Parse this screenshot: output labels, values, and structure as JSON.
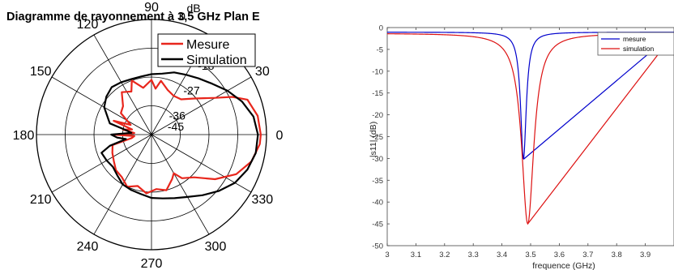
{
  "chart_data": [
    {
      "type": "polar",
      "title": "Diagramme de rayonnement à 3,5 GHz Plan E",
      "radial_unit": "dB",
      "radial_ticks": [
        {
          "label": "0",
          "level": 4
        },
        {
          "label": "-18",
          "level": 3
        },
        {
          "label": "-27",
          "level": 2
        },
        {
          "label": "-36",
          "level": 1
        },
        {
          "label": "-45",
          "level": 0
        }
      ],
      "angle_ticks": [
        {
          "angle": 0,
          "label": "0"
        },
        {
          "angle": 30,
          "label": "30"
        },
        {
          "angle": 60,
          "label": ""
        },
        {
          "angle": 90,
          "label": "90"
        },
        {
          "angle": 120,
          "label": "120"
        },
        {
          "angle": 150,
          "label": "150"
        },
        {
          "angle": 180,
          "label": "180"
        },
        {
          "angle": 210,
          "label": "210"
        },
        {
          "angle": 240,
          "label": "240"
        },
        {
          "angle": 270,
          "label": "270"
        },
        {
          "angle": 300,
          "label": "300"
        },
        {
          "angle": 330,
          "label": "330"
        }
      ],
      "legend_position": "top-right",
      "series": [
        {
          "name": "Mesure",
          "color": "#e8261c",
          "points": [
            [
              0,
              3.8
            ],
            [
              10,
              3.75
            ],
            [
              20,
              3.55
            ],
            [
              25,
              3.1
            ],
            [
              30,
              2.55
            ],
            [
              40,
              1.95
            ],
            [
              50,
              1.6
            ],
            [
              60,
              1.55
            ],
            [
              70,
              1.65
            ],
            [
              80,
              1.9
            ],
            [
              85,
              1.6
            ],
            [
              90,
              1.9
            ],
            [
              100,
              1.65
            ],
            [
              110,
              2.0
            ],
            [
              115,
              1.65
            ],
            [
              125,
              1.8
            ],
            [
              135,
              1.4
            ],
            [
              145,
              1.3
            ],
            [
              155,
              0.8
            ],
            [
              160,
              1.4
            ],
            [
              165,
              0.7
            ],
            [
              170,
              1.0
            ],
            [
              175,
              0.6
            ],
            [
              180,
              1.3
            ],
            [
              185,
              0.6
            ],
            [
              190,
              0.7
            ],
            [
              195,
              1.4
            ],
            [
              205,
              1.5
            ],
            [
              215,
              1.6
            ],
            [
              225,
              1.75
            ],
            [
              235,
              1.8
            ],
            [
              245,
              2.0
            ],
            [
              255,
              1.85
            ],
            [
              265,
              2.05
            ],
            [
              275,
              1.9
            ],
            [
              285,
              2.0
            ],
            [
              295,
              1.7
            ],
            [
              300,
              1.55
            ],
            [
              305,
              1.85
            ],
            [
              315,
              2.1
            ],
            [
              325,
              2.7
            ],
            [
              335,
              3.25
            ],
            [
              345,
              3.6
            ],
            [
              355,
              3.78
            ],
            [
              360,
              3.8
            ]
          ]
        },
        {
          "name": "Simulation",
          "color": "#000000",
          "points": [
            [
              0,
              3.7
            ],
            [
              10,
              3.6
            ],
            [
              20,
              3.35
            ],
            [
              30,
              3.05
            ],
            [
              40,
              2.75
            ],
            [
              50,
              2.55
            ],
            [
              60,
              2.4
            ],
            [
              70,
              2.3
            ],
            [
              80,
              2.15
            ],
            [
              90,
              2.1
            ],
            [
              100,
              2.05
            ],
            [
              110,
              2.05
            ],
            [
              120,
              2.1
            ],
            [
              130,
              2.15
            ],
            [
              140,
              2.05
            ],
            [
              150,
              1.9
            ],
            [
              160,
              1.6
            ],
            [
              165,
              1.5
            ],
            [
              170,
              0.9
            ],
            [
              175,
              0.7
            ],
            [
              180,
              1.4
            ],
            [
              185,
              1.2
            ],
            [
              190,
              0.9
            ],
            [
              195,
              1.5
            ],
            [
              200,
              1.85
            ],
            [
              210,
              1.8
            ],
            [
              220,
              1.75
            ],
            [
              230,
              1.85
            ],
            [
              240,
              2.0
            ],
            [
              250,
              2.05
            ],
            [
              260,
              2.1
            ],
            [
              270,
              2.2
            ],
            [
              280,
              2.25
            ],
            [
              290,
              2.35
            ],
            [
              300,
              2.5
            ],
            [
              310,
              2.75
            ],
            [
              320,
              3.05
            ],
            [
              330,
              3.35
            ],
            [
              340,
              3.55
            ],
            [
              350,
              3.68
            ],
            [
              360,
              3.7
            ]
          ]
        }
      ]
    },
    {
      "type": "line",
      "title": "",
      "xlabel": "frequence (GHz)",
      "ylabel": "|s11| (dB)",
      "xlim": [
        3,
        4
      ],
      "ylim": [
        -50,
        0
      ],
      "xticks": [
        "3",
        "3.1",
        "3.2",
        "3.3",
        "3.4",
        "3.5",
        "3.6",
        "3.7",
        "3.8",
        "3.9"
      ],
      "yticks": [
        "0",
        "-5",
        "-10",
        "-15",
        "-20",
        "-25",
        "-30",
        "-35",
        "-40",
        "-45",
        "-50"
      ],
      "legend_position": "top-right",
      "series": [
        {
          "name": "mesure",
          "color": "#0000cc",
          "f0": 3.475,
          "depth": 30.2,
          "floor": 1.05,
          "q": 7000
        },
        {
          "name": "simulation",
          "color": "#dd1111",
          "f0": 3.49,
          "depth": 45,
          "floor": 1.3,
          "q": 1500
        }
      ]
    }
  ]
}
